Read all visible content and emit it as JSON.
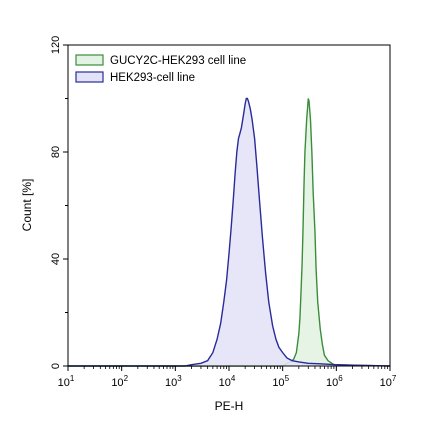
{
  "chart_data": {
    "type": "area",
    "title": "",
    "xlabel": "PE-H",
    "ylabel": "Count [%]",
    "x_scale": "log",
    "xlim": [
      10,
      10000000
    ],
    "ylim": [
      0,
      120
    ],
    "x_ticks": [
      {
        "value": 10,
        "base": "10",
        "exp": "1"
      },
      {
        "value": 100,
        "base": "10",
        "exp": "2"
      },
      {
        "value": 1000,
        "base": "10",
        "exp": "3"
      },
      {
        "value": 10000,
        "base": "10",
        "exp": "4"
      },
      {
        "value": 100000,
        "base": "10",
        "exp": "5"
      },
      {
        "value": 1000000,
        "base": "10",
        "exp": "6"
      },
      {
        "value": 10000000,
        "base": "10",
        "exp": "7"
      }
    ],
    "y_ticks": [
      {
        "value": 0,
        "label": "0"
      },
      {
        "value": 40,
        "label": "40"
      },
      {
        "value": 80,
        "label": "80"
      },
      {
        "value": 120,
        "label": "120"
      }
    ],
    "grid": false,
    "legend_position": "top-left",
    "series": [
      {
        "name": "GUCY2C-HEK293 cell line",
        "stroke": "#3c8c3c",
        "fill": "#e3f3e3",
        "points": [
          [
            10,
            0
          ],
          [
            100000,
            0
          ],
          [
            120000,
            1
          ],
          [
            140000,
            1.5
          ],
          [
            160000,
            2.5
          ],
          [
            180000,
            5
          ],
          [
            200000,
            12
          ],
          [
            210000,
            18
          ],
          [
            220000,
            28
          ],
          [
            230000,
            38
          ],
          [
            240000,
            52
          ],
          [
            250000,
            68
          ],
          [
            260000,
            80
          ],
          [
            280000,
            92
          ],
          [
            300000,
            100
          ],
          [
            310000,
            99
          ],
          [
            330000,
            92
          ],
          [
            350000,
            80
          ],
          [
            370000,
            65
          ],
          [
            400000,
            50
          ],
          [
            420000,
            36
          ],
          [
            450000,
            24
          ],
          [
            500000,
            14
          ],
          [
            550000,
            8
          ],
          [
            600000,
            4
          ],
          [
            700000,
            2
          ],
          [
            900000,
            0.5
          ],
          [
            10000000,
            0
          ]
        ]
      },
      {
        "name": "HEK293-cell line",
        "stroke": "#2a2a9a",
        "fill": "#e3e3f7",
        "points": [
          [
            10,
            0
          ],
          [
            1500,
            0
          ],
          [
            2000,
            0.5
          ],
          [
            3000,
            1
          ],
          [
            4000,
            2
          ],
          [
            5000,
            5
          ],
          [
            6000,
            10
          ],
          [
            7000,
            16
          ],
          [
            8000,
            24
          ],
          [
            9000,
            32
          ],
          [
            10000,
            42
          ],
          [
            11000,
            52
          ],
          [
            12000,
            62
          ],
          [
            13000,
            72
          ],
          [
            14000,
            80
          ],
          [
            15000,
            85
          ],
          [
            16000,
            87
          ],
          [
            17000,
            89
          ],
          [
            18000,
            92
          ],
          [
            19000,
            95
          ],
          [
            20000,
            98
          ],
          [
            21000,
            100
          ],
          [
            22000,
            100
          ],
          [
            23000,
            99
          ],
          [
            25000,
            96
          ],
          [
            27000,
            92
          ],
          [
            30000,
            85
          ],
          [
            33000,
            75
          ],
          [
            37000,
            62
          ],
          [
            42000,
            48
          ],
          [
            48000,
            35
          ],
          [
            55000,
            24
          ],
          [
            65000,
            15
          ],
          [
            75000,
            10
          ],
          [
            85000,
            7
          ],
          [
            100000,
            5
          ],
          [
            120000,
            3
          ],
          [
            150000,
            2
          ],
          [
            200000,
            1.5
          ],
          [
            300000,
            1
          ],
          [
            500000,
            0.8
          ],
          [
            1000000,
            0.5
          ],
          [
            2000000,
            0.3
          ],
          [
            10000000,
            0
          ]
        ]
      }
    ]
  }
}
